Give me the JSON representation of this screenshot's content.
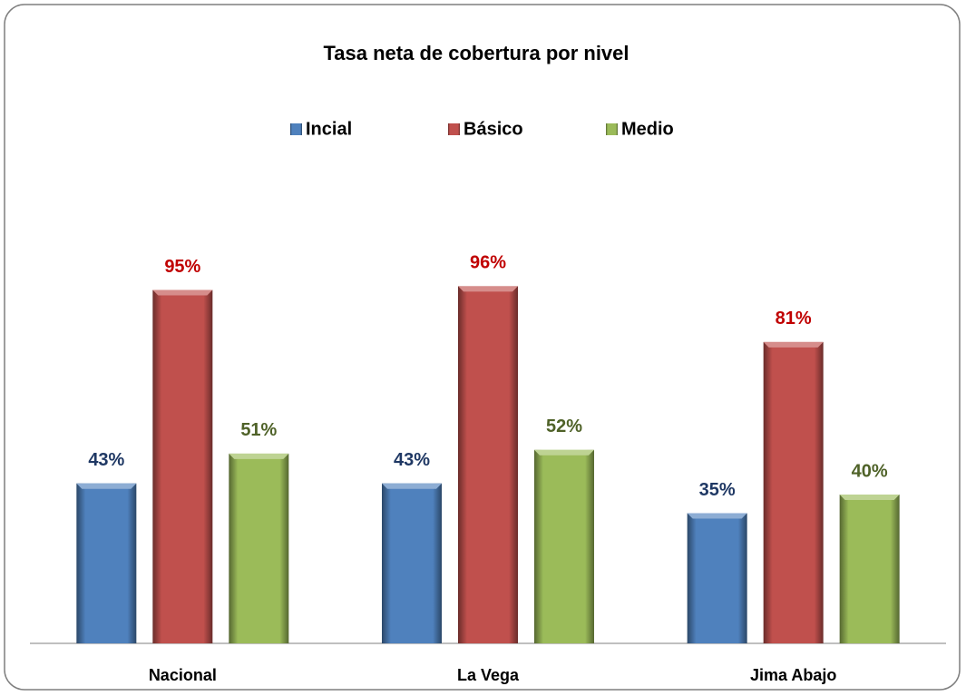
{
  "chart_data": {
    "type": "bar",
    "title": "Tasa neta de cobertura por nivel",
    "categories": [
      "Nacional",
      "La Vega",
      "Jima Abajo"
    ],
    "series": [
      {
        "name": "Incial",
        "color": "#4f81bd",
        "label_color": "#1f3864",
        "values": [
          43,
          43,
          35
        ],
        "value_labels": [
          "43%",
          "43%",
          "35%"
        ]
      },
      {
        "name": "Básico",
        "color": "#c0504d",
        "label_color": "#c00000",
        "values": [
          95,
          96,
          81
        ],
        "value_labels": [
          "95%",
          "96%",
          "81%"
        ]
      },
      {
        "name": "Medio",
        "color": "#9bbb59",
        "label_color": "#4f6228",
        "values": [
          51,
          52,
          40
        ],
        "value_labels": [
          "51%",
          "52%",
          "40%"
        ]
      }
    ],
    "ylim": [
      0,
      100
    ],
    "legend": "top"
  }
}
